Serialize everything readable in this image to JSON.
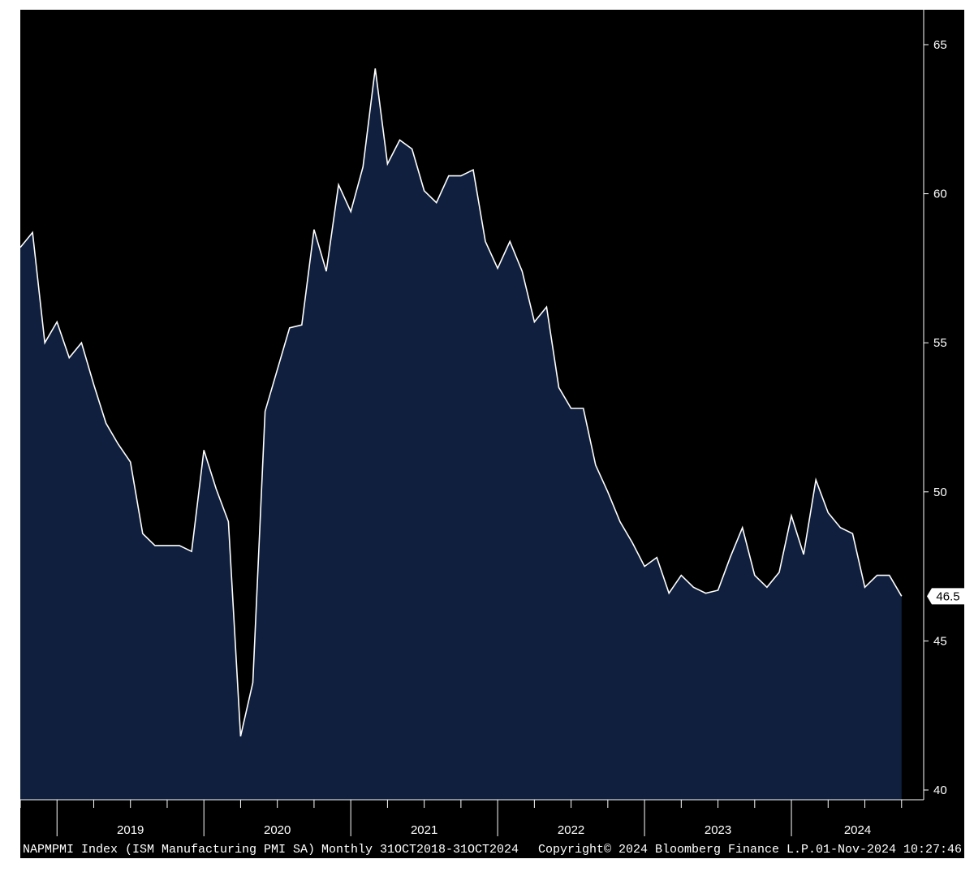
{
  "colors": {
    "background": "#000000",
    "area_fill": "#0f1f3d",
    "line": "#ffffff",
    "axis": "#ffffff",
    "last_value_box": "#ffffff"
  },
  "footer": {
    "ticker": "NAPMPMI Index (ISM Manufacturing PMI SA)",
    "frequency": "Monthly 31OCT2018-31OCT2024",
    "copyright": "Copyright© 2024 Bloomberg Finance L.P.",
    "timestamp": "01-Nov-2024 10:27:46"
  },
  "chart_data": {
    "type": "area",
    "y_axis_position": "right",
    "grid": false,
    "legend": "none",
    "ylim": [
      40,
      65
    ],
    "yticks": [
      40,
      45,
      50,
      55,
      60,
      65
    ],
    "year_labels": [
      "2019",
      "2020",
      "2021",
      "2022",
      "2023",
      "2024"
    ],
    "last_value_label": "46.5",
    "x": [
      "2018-10",
      "2018-11",
      "2018-12",
      "2019-01",
      "2019-02",
      "2019-03",
      "2019-04",
      "2019-05",
      "2019-06",
      "2019-07",
      "2019-08",
      "2019-09",
      "2019-10",
      "2019-11",
      "2019-12",
      "2020-01",
      "2020-02",
      "2020-03",
      "2020-04",
      "2020-05",
      "2020-06",
      "2020-07",
      "2020-08",
      "2020-09",
      "2020-10",
      "2020-11",
      "2020-12",
      "2021-01",
      "2021-02",
      "2021-03",
      "2021-04",
      "2021-05",
      "2021-06",
      "2021-07",
      "2021-08",
      "2021-09",
      "2021-10",
      "2021-11",
      "2021-12",
      "2022-01",
      "2022-02",
      "2022-03",
      "2022-04",
      "2022-05",
      "2022-06",
      "2022-07",
      "2022-08",
      "2022-09",
      "2022-10",
      "2022-11",
      "2022-12",
      "2023-01",
      "2023-02",
      "2023-03",
      "2023-04",
      "2023-05",
      "2023-06",
      "2023-07",
      "2023-08",
      "2023-09",
      "2023-10",
      "2023-11",
      "2023-12",
      "2024-01",
      "2024-02",
      "2024-03",
      "2024-04",
      "2024-05",
      "2024-06",
      "2024-07",
      "2024-08",
      "2024-09",
      "2024-10"
    ],
    "series": [
      {
        "values": [
          58.2,
          58.7,
          55.0,
          55.7,
          54.5,
          55.0,
          53.6,
          52.3,
          51.6,
          51.0,
          48.6,
          48.2,
          48.2,
          48.2,
          48.0,
          51.4,
          50.1,
          49.0,
          41.8,
          43.6,
          52.7,
          54.1,
          55.5,
          55.6,
          58.8,
          57.4,
          60.3,
          59.4,
          60.9,
          64.2,
          61.0,
          61.8,
          61.5,
          60.1,
          59.7,
          60.6,
          60.6,
          60.8,
          58.4,
          57.5,
          58.4,
          57.4,
          55.7,
          56.2,
          53.5,
          52.8,
          52.8,
          50.9,
          50.0,
          49.0,
          48.3,
          47.5,
          47.8,
          46.6,
          47.2,
          46.8,
          46.6,
          46.7,
          47.8,
          48.8,
          47.2,
          46.8,
          47.3,
          49.2,
          47.9,
          50.4,
          49.3,
          48.8,
          48.6,
          46.8,
          47.2,
          47.2,
          46.5
        ]
      }
    ]
  }
}
